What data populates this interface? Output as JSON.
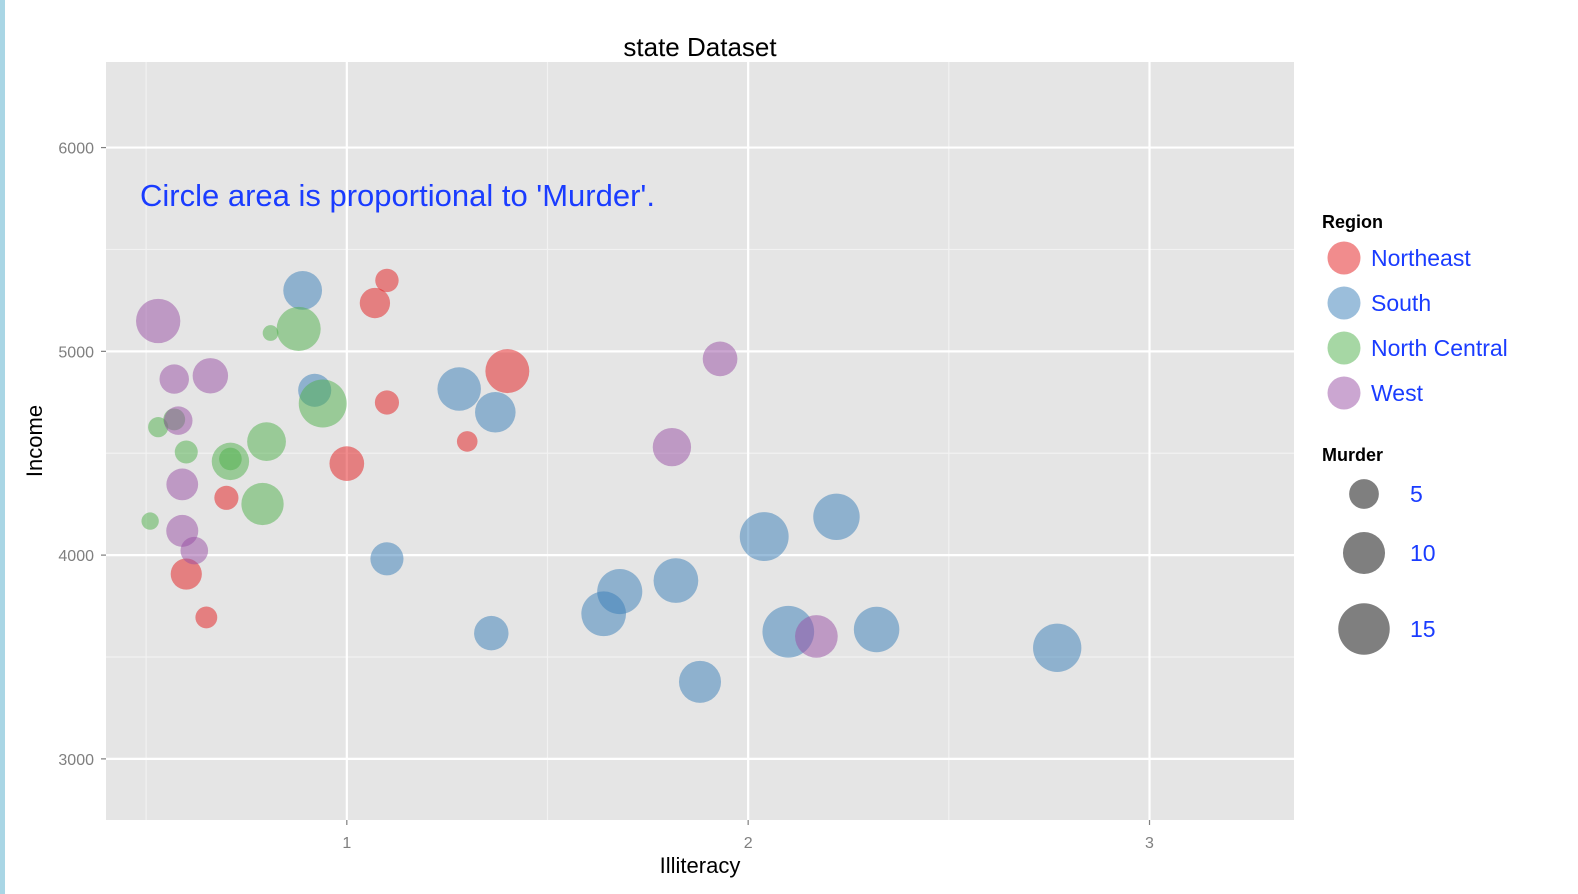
{
  "chart_data": {
    "type": "scatter",
    "title": "state Dataset",
    "xlabel": "Illiteracy",
    "ylabel": "Income",
    "xlim": [
      0.4,
      3.36
    ],
    "ylim": [
      2700,
      6420
    ],
    "x_ticks": [
      1,
      2,
      3
    ],
    "y_ticks": [
      3000,
      4000,
      5000,
      6000
    ],
    "grid": true,
    "legend_position": "right",
    "annotation": {
      "text": "Circle area is proportional to 'Murder'.",
      "x": 0.48,
      "y": 5730,
      "color": "#1a3cff"
    },
    "colors": {
      "Northeast": "#e41a1c",
      "South": "#377eb8",
      "North Central": "#4daf4a",
      "West": "#984ea3",
      "panel": "#e5e5e5",
      "legend_text": "#1a3cff",
      "size_key": "#4d4d4d"
    },
    "color_legend": {
      "title": "Region",
      "entries": [
        "Northeast",
        "South",
        "North Central",
        "West"
      ]
    },
    "size_legend": {
      "title": "Murder",
      "entries": [
        5,
        10,
        15
      ]
    },
    "series": [
      {
        "name": "Northeast",
        "points": [
          {
            "x": 1.1,
            "y": 5348,
            "murder": 3.1
          },
          {
            "x": 1.07,
            "y": 5237,
            "murder": 5.2
          },
          {
            "x": 1.1,
            "y": 4749,
            "murder": 3.3
          },
          {
            "x": 1.4,
            "y": 4903,
            "murder": 10.9
          },
          {
            "x": 1.0,
            "y": 4449,
            "murder": 6.8
          },
          {
            "x": 1.3,
            "y": 4558,
            "murder": 2.4
          },
          {
            "x": 0.7,
            "y": 4281,
            "murder": 3.3
          },
          {
            "x": 0.6,
            "y": 3907,
            "murder": 5.5
          },
          {
            "x": 0.65,
            "y": 3694,
            "murder": 2.7
          }
        ]
      },
      {
        "name": "South",
        "points": [
          {
            "x": 0.89,
            "y": 5299,
            "murder": 8.5
          },
          {
            "x": 0.92,
            "y": 4809,
            "murder": 6.2
          },
          {
            "x": 1.28,
            "y": 4815,
            "murder": 10.7
          },
          {
            "x": 1.37,
            "y": 4701,
            "murder": 9.3
          },
          {
            "x": 1.1,
            "y": 3982,
            "murder": 6.2
          },
          {
            "x": 1.36,
            "y": 3617,
            "murder": 6.7
          },
          {
            "x": 1.64,
            "y": 3712,
            "murder": 11.3
          },
          {
            "x": 1.68,
            "y": 3821,
            "murder": 11.5
          },
          {
            "x": 1.82,
            "y": 3875,
            "murder": 11.3
          },
          {
            "x": 1.88,
            "y": 3378,
            "murder": 10.0
          },
          {
            "x": 2.04,
            "y": 4091,
            "murder": 13.5
          },
          {
            "x": 2.22,
            "y": 4188,
            "murder": 12.2
          },
          {
            "x": 2.1,
            "y": 3624,
            "murder": 15.1
          },
          {
            "x": 2.32,
            "y": 3635,
            "murder": 11.7
          },
          {
            "x": 2.77,
            "y": 3545,
            "murder": 13.2
          }
        ]
      },
      {
        "name": "North Central",
        "points": [
          {
            "x": 0.51,
            "y": 4167,
            "murder": 1.7
          },
          {
            "x": 0.53,
            "y": 4628,
            "murder": 2.3
          },
          {
            "x": 0.57,
            "y": 4666,
            "murder": 2.7
          },
          {
            "x": 0.6,
            "y": 4506,
            "murder": 3.0
          },
          {
            "x": 0.71,
            "y": 4460,
            "murder": 7.9
          },
          {
            "x": 0.71,
            "y": 4472,
            "murder": 2.9
          },
          {
            "x": 0.8,
            "y": 4557,
            "murder": 8.5
          },
          {
            "x": 0.79,
            "y": 4251,
            "murder": 10.1
          },
          {
            "x": 0.81,
            "y": 5090,
            "murder": 1.4
          },
          {
            "x": 0.88,
            "y": 5110,
            "murder": 11.0
          },
          {
            "x": 0.94,
            "y": 4744,
            "murder": 13.0
          }
        ]
      },
      {
        "name": "West",
        "points": [
          {
            "x": 0.53,
            "y": 5149,
            "murder": 11.1
          },
          {
            "x": 0.57,
            "y": 4864,
            "murder": 4.9
          },
          {
            "x": 0.66,
            "y": 4880,
            "murder": 7.1
          },
          {
            "x": 0.58,
            "y": 4660,
            "murder": 4.6
          },
          {
            "x": 0.59,
            "y": 4347,
            "murder": 5.7
          },
          {
            "x": 0.59,
            "y": 4119,
            "murder": 5.8
          },
          {
            "x": 0.62,
            "y": 4022,
            "murder": 4.3
          },
          {
            "x": 1.93,
            "y": 4963,
            "murder": 6.8
          },
          {
            "x": 1.81,
            "y": 4530,
            "murder": 8.3
          },
          {
            "x": 2.17,
            "y": 3601,
            "murder": 10.3
          }
        ]
      }
    ]
  }
}
